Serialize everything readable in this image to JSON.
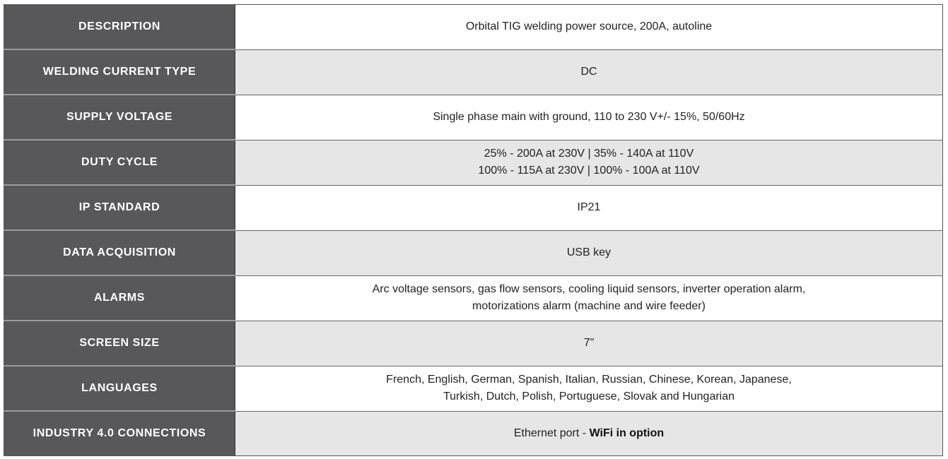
{
  "table": {
    "rows": [
      {
        "label": "DESCRIPTION",
        "lines": [
          "Orbital TIG welding power source, 200A, autoline"
        ]
      },
      {
        "label": "WELDING CURRENT TYPE",
        "lines": [
          "DC"
        ]
      },
      {
        "label": "SUPPLY VOLTAGE",
        "lines": [
          "Single phase main with ground, 110 to 230 V+/- 15%, 50/60Hz"
        ]
      },
      {
        "label": "DUTY CYCLE",
        "lines": [
          "25% - 200A at 230V | 35% - 140A at 110V",
          "100% - 115A at 230V | 100% - 100A at 110V"
        ]
      },
      {
        "label": "IP STANDARD",
        "lines": [
          "IP21"
        ]
      },
      {
        "label": "DATA ACQUISITION",
        "lines": [
          "USB key"
        ]
      },
      {
        "label": "ALARMS",
        "lines": [
          "Arc voltage sensors, gas flow sensors, cooling liquid sensors, inverter operation alarm,",
          "motorizations alarm (machine and wire feeder)"
        ]
      },
      {
        "label": "SCREEN SIZE",
        "lines": [
          "7\""
        ]
      },
      {
        "label": "LANGUAGES",
        "lines": [
          "French, English, German, Spanish, Italian, Russian, Chinese, Korean, Japanese,",
          "Turkish, Dutch, Polish, Portuguese, Slovak and Hungarian"
        ]
      },
      {
        "label": "INDUSTRY 4.0 CONNECTIONS",
        "lines": [
          "Ethernet port -"
        ],
        "emphasis": "WiFi in option"
      }
    ]
  }
}
